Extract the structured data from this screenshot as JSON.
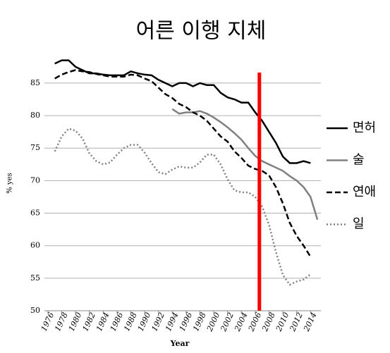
{
  "chart_data": {
    "type": "line",
    "title": "어른 이행 지체",
    "x_label": "Year",
    "y_label": "% yes",
    "x": [
      1977,
      1978,
      1979,
      1980,
      1981,
      1982,
      1983,
      1984,
      1985,
      1986,
      1987,
      1988,
      1989,
      1990,
      1991,
      1992,
      1993,
      1994,
      1995,
      1996,
      1997,
      1998,
      1999,
      2000,
      2001,
      2002,
      2003,
      2004,
      2005,
      2006,
      2007,
      2008,
      2009,
      2010,
      2011,
      2012,
      2013,
      2014,
      2015
    ],
    "series": [
      {
        "name": "면허",
        "color": "#000000",
        "style": "solid",
        "values": [
          88,
          88.5,
          88.5,
          87.5,
          87,
          86.5,
          86.5,
          86.3,
          86.2,
          86.2,
          86.2,
          86.8,
          86.5,
          86.3,
          86.2,
          85.5,
          85,
          84.5,
          85,
          85,
          84.5,
          85,
          84.7,
          84.7,
          83.5,
          82.8,
          82.5,
          82,
          82,
          80.5,
          79.2,
          77.5,
          75.8,
          73.7,
          72.7,
          72.7,
          73,
          72.7,
          null
        ]
      },
      {
        "name": "술",
        "color": "#808080",
        "style": "solid",
        "values": [
          null,
          null,
          null,
          null,
          null,
          null,
          null,
          null,
          null,
          null,
          null,
          null,
          null,
          null,
          null,
          null,
          null,
          81,
          80.3,
          80.5,
          80.5,
          80.7,
          80.3,
          79.7,
          79,
          78.2,
          77.3,
          76.3,
          75,
          73.8,
          73,
          72.5,
          72,
          71.5,
          70.7,
          70,
          69,
          67.5,
          64
        ]
      },
      {
        "name": "연애",
        "color": "#000000",
        "style": "dashed",
        "values": [
          85.7,
          86.3,
          86.7,
          87,
          86.8,
          86.7,
          86.4,
          86.2,
          86,
          86,
          86,
          86.3,
          86.2,
          85.7,
          85.3,
          84.3,
          83.3,
          82.7,
          81.8,
          81.3,
          80.5,
          80,
          79.2,
          78,
          76.8,
          76,
          74.5,
          73.5,
          72.3,
          71.8,
          71.5,
          70.8,
          69,
          66.5,
          63.5,
          61.5,
          60,
          58.3,
          null
        ]
      },
      {
        "name": "일",
        "color": "#808080",
        "style": "dotted",
        "values": [
          74.5,
          76.8,
          78,
          77.7,
          76.5,
          74.2,
          73,
          72.5,
          72.8,
          74,
          75,
          75.5,
          75.5,
          74.3,
          72.7,
          71.3,
          71,
          71.7,
          72.2,
          72,
          72,
          72.8,
          74,
          74,
          72.5,
          70.2,
          68.5,
          68.2,
          68.2,
          67.5,
          66,
          63.2,
          59,
          55.5,
          54,
          54.5,
          54.8,
          55.6,
          null
        ]
      }
    ],
    "xlim": [
      1975.5,
      2015.5
    ],
    "xticks": [
      1976,
      1978,
      1980,
      1982,
      1984,
      1986,
      1988,
      1990,
      1992,
      1994,
      1996,
      1998,
      2000,
      2002,
      2004,
      2006,
      2008,
      2010,
      2012,
      2014
    ],
    "ylim": [
      50,
      89
    ],
    "yticks": [
      50,
      55,
      60,
      65,
      70,
      75,
      80,
      85
    ],
    "grid": true,
    "vline": {
      "x": 2006.6,
      "color": "#ff0000"
    },
    "legend": "right"
  }
}
